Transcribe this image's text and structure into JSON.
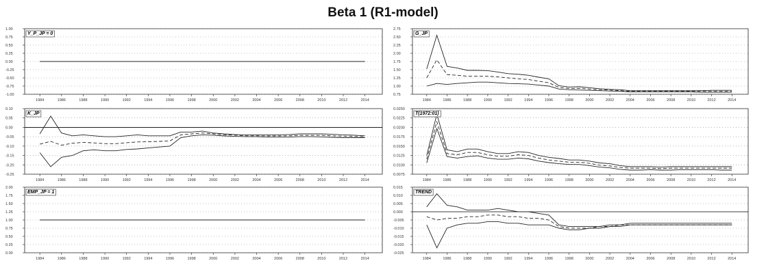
{
  "figure_title": "Beta 1 (R1-model)",
  "chart_data": [
    {
      "type": "line",
      "label": "Y_P_JP = 0",
      "x": [
        1984,
        1985,
        1986,
        1987,
        1988,
        1989,
        1990,
        1991,
        1992,
        1993,
        1994,
        1995,
        1996,
        1997,
        1998,
        1999,
        2000,
        2001,
        2002,
        2003,
        2004,
        2005,
        2006,
        2007,
        2008,
        2009,
        2010,
        2011,
        2012,
        2013,
        2014
      ],
      "x_ticks": [
        "1984",
        "1986",
        "1988",
        "1990",
        "1992",
        "1994",
        "1996",
        "1998",
        "2000",
        "2002",
        "2004",
        "2006",
        "2008",
        "2010",
        "2012",
        "2014"
      ],
      "y_ticks": [
        "1.00",
        "0.75",
        "0.50",
        "0.25",
        "0.00",
        "-0.25",
        "-0.50",
        "-0.75",
        "-1.00"
      ],
      "ylim": [
        -1.0,
        1.0
      ],
      "zero_line": false,
      "series": [
        {
          "style": "solid",
          "values": [
            0,
            0,
            0,
            0,
            0,
            0,
            0,
            0,
            0,
            0,
            0,
            0,
            0,
            0,
            0,
            0,
            0,
            0,
            0,
            0,
            0,
            0,
            0,
            0,
            0,
            0,
            0,
            0,
            0,
            0,
            0
          ]
        }
      ]
    },
    {
      "type": "line",
      "label": "G_JP",
      "x": [
        1984,
        1985,
        1986,
        1987,
        1988,
        1989,
        1990,
        1991,
        1992,
        1993,
        1994,
        1995,
        1996,
        1997,
        1998,
        1999,
        2000,
        2001,
        2002,
        2003,
        2004,
        2005,
        2006,
        2007,
        2008,
        2009,
        2010,
        2011,
        2012,
        2013,
        2014
      ],
      "x_ticks": [
        "1984",
        "1986",
        "1988",
        "1990",
        "1992",
        "1994",
        "1996",
        "1998",
        "2000",
        "2002",
        "2004",
        "2006",
        "2008",
        "2010",
        "2012",
        "2014"
      ],
      "y_ticks": [
        "2.75",
        "2.50",
        "2.25",
        "2.00",
        "1.75",
        "1.50",
        "1.25",
        "1.00",
        "0.75"
      ],
      "ylim": [
        0.75,
        2.75
      ],
      "zero_line": false,
      "series": [
        {
          "style": "solid",
          "values": [
            1.52,
            2.55,
            1.6,
            1.55,
            1.48,
            1.48,
            1.47,
            1.43,
            1.38,
            1.36,
            1.33,
            1.27,
            1.22,
            1.01,
            0.97,
            0.98,
            0.95,
            0.92,
            0.9,
            0.89,
            0.86,
            0.86,
            0.86,
            0.86,
            0.86,
            0.86,
            0.86,
            0.86,
            0.87,
            0.87,
            0.87
          ]
        },
        {
          "style": "dashed",
          "values": [
            1.25,
            1.8,
            1.35,
            1.33,
            1.3,
            1.3,
            1.3,
            1.28,
            1.25,
            1.22,
            1.2,
            1.15,
            1.1,
            0.96,
            0.93,
            0.93,
            0.91,
            0.89,
            0.88,
            0.86,
            0.84,
            0.84,
            0.84,
            0.84,
            0.84,
            0.84,
            0.84,
            0.84,
            0.84,
            0.84,
            0.84
          ]
        },
        {
          "style": "solid",
          "values": [
            1.0,
            1.08,
            1.05,
            1.08,
            1.1,
            1.12,
            1.12,
            1.1,
            1.08,
            1.07,
            1.06,
            1.03,
            1.0,
            0.91,
            0.89,
            0.88,
            0.87,
            0.86,
            0.85,
            0.84,
            0.82,
            0.82,
            0.82,
            0.82,
            0.82,
            0.82,
            0.82,
            0.81,
            0.81,
            0.81,
            0.81
          ]
        }
      ]
    },
    {
      "type": "line",
      "label": "K_JP",
      "x": [
        1984,
        1985,
        1986,
        1987,
        1988,
        1989,
        1990,
        1991,
        1992,
        1993,
        1994,
        1995,
        1996,
        1997,
        1998,
        1999,
        2000,
        2001,
        2002,
        2003,
        2004,
        2005,
        2006,
        2007,
        2008,
        2009,
        2010,
        2011,
        2012,
        2013,
        2014
      ],
      "x_ticks": [
        "1984",
        "1986",
        "1988",
        "1990",
        "1992",
        "1994",
        "1996",
        "1998",
        "2000",
        "2002",
        "2004",
        "2006",
        "2008",
        "2010",
        "2012",
        "2014"
      ],
      "y_ticks": [
        "0.10",
        "0.05",
        "0.00",
        "-0.05",
        "-0.10",
        "-0.15",
        "-0.20",
        "-0.25"
      ],
      "ylim": [
        -0.25,
        0.1
      ],
      "zero_line": true,
      "series": [
        {
          "style": "solid",
          "values": [
            -0.035,
            0.06,
            -0.03,
            -0.045,
            -0.04,
            -0.045,
            -0.05,
            -0.05,
            -0.045,
            -0.04,
            -0.045,
            -0.045,
            -0.045,
            -0.025,
            -0.025,
            -0.02,
            -0.03,
            -0.035,
            -0.038,
            -0.04,
            -0.04,
            -0.04,
            -0.04,
            -0.038,
            -0.035,
            -0.035,
            -0.035,
            -0.037,
            -0.04,
            -0.042,
            -0.045
          ]
        },
        {
          "style": "dashed",
          "values": [
            -0.09,
            -0.075,
            -0.095,
            -0.085,
            -0.08,
            -0.083,
            -0.087,
            -0.087,
            -0.082,
            -0.078,
            -0.077,
            -0.075,
            -0.072,
            -0.04,
            -0.035,
            -0.03,
            -0.035,
            -0.04,
            -0.042,
            -0.045,
            -0.045,
            -0.046,
            -0.046,
            -0.045,
            -0.043,
            -0.043,
            -0.043,
            -0.045,
            -0.047,
            -0.048,
            -0.05
          ]
        },
        {
          "style": "solid",
          "values": [
            -0.135,
            -0.21,
            -0.16,
            -0.15,
            -0.125,
            -0.12,
            -0.125,
            -0.125,
            -0.118,
            -0.115,
            -0.11,
            -0.105,
            -0.1,
            -0.055,
            -0.045,
            -0.04,
            -0.042,
            -0.046,
            -0.048,
            -0.05,
            -0.05,
            -0.052,
            -0.052,
            -0.052,
            -0.05,
            -0.05,
            -0.051,
            -0.053,
            -0.055,
            -0.055,
            -0.055
          ]
        }
      ]
    },
    {
      "type": "line",
      "label": "T(1972:01)",
      "x": [
        1984,
        1985,
        1986,
        1987,
        1988,
        1989,
        1990,
        1991,
        1992,
        1993,
        1994,
        1995,
        1996,
        1997,
        1998,
        1999,
        2000,
        2001,
        2002,
        2003,
        2004,
        2005,
        2006,
        2007,
        2008,
        2009,
        2010,
        2011,
        2012,
        2013,
        2014
      ],
      "x_ticks": [
        "1984",
        "1986",
        "1988",
        "1990",
        "1992",
        "1994",
        "1996",
        "1998",
        "2000",
        "2002",
        "2004",
        "2006",
        "2008",
        "2010",
        "2012",
        "2014"
      ],
      "y_ticks": [
        "0.0250",
        "0.0225",
        "0.0200",
        "0.0175",
        "0.0150",
        "0.0125",
        "0.0100",
        "0.0075"
      ],
      "ylim": [
        0.0075,
        0.025
      ],
      "zero_line": false,
      "series": [
        {
          "style": "solid",
          "values": [
            0.0125,
            0.0235,
            0.014,
            0.0135,
            0.0142,
            0.0142,
            0.0135,
            0.013,
            0.013,
            0.0135,
            0.0133,
            0.0125,
            0.012,
            0.0117,
            0.0113,
            0.0113,
            0.011,
            0.0105,
            0.0103,
            0.0098,
            0.0095,
            0.0095,
            0.0095,
            0.0094,
            0.0095,
            0.0095,
            0.0095,
            0.0095,
            0.0095,
            0.0095,
            0.0095
          ]
        },
        {
          "style": "dashed",
          "values": [
            0.0115,
            0.0215,
            0.013,
            0.0127,
            0.0133,
            0.0133,
            0.0127,
            0.0123,
            0.0123,
            0.0127,
            0.0125,
            0.0118,
            0.0113,
            0.011,
            0.0107,
            0.0107,
            0.0104,
            0.0099,
            0.0097,
            0.0093,
            0.0091,
            0.0091,
            0.0091,
            0.009,
            0.0091,
            0.0091,
            0.0091,
            0.0091,
            0.0091,
            0.0091,
            0.0091
          ]
        },
        {
          "style": "solid",
          "values": [
            0.0105,
            0.0197,
            0.0122,
            0.0118,
            0.0122,
            0.0124,
            0.0118,
            0.0115,
            0.0115,
            0.0118,
            0.0116,
            0.011,
            0.0106,
            0.0103,
            0.0101,
            0.0101,
            0.0098,
            0.0094,
            0.0092,
            0.0088,
            0.0086,
            0.0086,
            0.0087,
            0.0086,
            0.0086,
            0.0087,
            0.0087,
            0.0087,
            0.0087,
            0.0086,
            0.0086
          ]
        }
      ]
    },
    {
      "type": "line",
      "label": "EMP_JP = 1",
      "x": [
        1984,
        1985,
        1986,
        1987,
        1988,
        1989,
        1990,
        1991,
        1992,
        1993,
        1994,
        1995,
        1996,
        1997,
        1998,
        1999,
        2000,
        2001,
        2002,
        2003,
        2004,
        2005,
        2006,
        2007,
        2008,
        2009,
        2010,
        2011,
        2012,
        2013,
        2014
      ],
      "x_ticks": [
        "1984",
        "1986",
        "1988",
        "1990",
        "1992",
        "1994",
        "1996",
        "1998",
        "2000",
        "2002",
        "2004",
        "2006",
        "2008",
        "2010",
        "2012",
        "2014"
      ],
      "y_ticks": [
        "2.00",
        "1.75",
        "1.50",
        "1.25",
        "1.00",
        "0.75",
        "0.50",
        "0.25",
        "0.00"
      ],
      "ylim": [
        0.0,
        2.0
      ],
      "zero_line": false,
      "series": [
        {
          "style": "solid",
          "values": [
            1,
            1,
            1,
            1,
            1,
            1,
            1,
            1,
            1,
            1,
            1,
            1,
            1,
            1,
            1,
            1,
            1,
            1,
            1,
            1,
            1,
            1,
            1,
            1,
            1,
            1,
            1,
            1,
            1,
            1,
            1
          ]
        }
      ]
    },
    {
      "type": "line",
      "label": "TREND",
      "x": [
        1984,
        1985,
        1986,
        1987,
        1988,
        1989,
        1990,
        1991,
        1992,
        1993,
        1994,
        1995,
        1996,
        1997,
        1998,
        1999,
        2000,
        2001,
        2002,
        2003,
        2004,
        2005,
        2006,
        2007,
        2008,
        2009,
        2010,
        2011,
        2012,
        2013,
        2014
      ],
      "x_ticks": [
        "1984",
        "1986",
        "1988",
        "1990",
        "1992",
        "1994",
        "1996",
        "1998",
        "2000",
        "2002",
        "2004",
        "2006",
        "2008",
        "2010",
        "2012",
        "2014"
      ],
      "y_ticks": [
        "0.015",
        "0.010",
        "0.005",
        "0.000",
        "-0.005",
        "-0.010",
        "-0.015",
        "-0.020",
        "-0.025"
      ],
      "ylim": [
        -0.025,
        0.015
      ],
      "zero_line": true,
      "series": [
        {
          "style": "solid",
          "values": [
            0.003,
            0.011,
            0.004,
            0.003,
            0.001,
            0.001,
            0.001,
            0.002,
            0.001,
            0.0,
            0.0,
            -0.001,
            -0.002,
            -0.008,
            -0.009,
            -0.009,
            -0.009,
            -0.009,
            -0.008,
            -0.008,
            -0.007,
            -0.007,
            -0.007,
            -0.007,
            -0.007,
            -0.007,
            -0.007,
            -0.007,
            -0.007,
            -0.007,
            -0.007
          ]
        },
        {
          "style": "dashed",
          "values": [
            -0.003,
            -0.005,
            -0.004,
            -0.004,
            -0.003,
            -0.003,
            -0.002,
            -0.002,
            -0.003,
            -0.003,
            -0.004,
            -0.004,
            -0.005,
            -0.009,
            -0.01,
            -0.01,
            -0.01,
            -0.009,
            -0.009,
            -0.008,
            -0.008,
            -0.008,
            -0.008,
            -0.008,
            -0.008,
            -0.008,
            -0.008,
            -0.008,
            -0.008,
            -0.008,
            -0.008
          ]
        },
        {
          "style": "solid",
          "values": [
            -0.008,
            -0.022,
            -0.01,
            -0.008,
            -0.007,
            -0.007,
            -0.006,
            -0.006,
            -0.007,
            -0.007,
            -0.008,
            -0.008,
            -0.008,
            -0.01,
            -0.011,
            -0.011,
            -0.01,
            -0.01,
            -0.009,
            -0.009,
            -0.008,
            -0.008,
            -0.008,
            -0.008,
            -0.008,
            -0.008,
            -0.008,
            -0.008,
            -0.008,
            -0.008,
            -0.008
          ]
        }
      ]
    }
  ]
}
